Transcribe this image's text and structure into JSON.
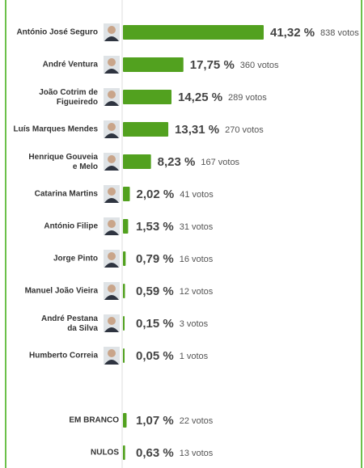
{
  "chart_data": {
    "type": "bar",
    "orientation": "horizontal",
    "color": "#52a11f",
    "categories": [
      "António José Seguro",
      "André Ventura",
      "João Cotrim de Figueiredo",
      "Luís Marques Mendes",
      "Henrique Gouveia e Melo",
      "Catarina Martins",
      "António Filipe",
      "Jorge Pinto",
      "Manuel João Vieira",
      "André Pestana da Silva",
      "Humberto Correia",
      "EM BRANCO",
      "NULOS"
    ],
    "values": [
      41.32,
      17.75,
      14.25,
      13.31,
      8.23,
      2.02,
      1.53,
      0.79,
      0.59,
      0.15,
      0.05,
      1.07,
      0.63
    ],
    "value_labels": [
      "41,32 %",
      "17,75 %",
      "14,25 %",
      "13,31 %",
      "8,23 %",
      "2,02 %",
      "1,53 %",
      "0,79 %",
      "0,59 %",
      "0,15 %",
      "0,05 %",
      "1,07 %",
      "0,63 %"
    ],
    "votes": [
      "838 votos",
      "360 votos",
      "289 votos",
      "270 votos",
      "167 votos",
      "41 votos",
      "31 votos",
      "16 votos",
      "12 votos",
      "3 votos",
      "1 votos",
      "22 votos",
      "13 votos"
    ]
  }
}
